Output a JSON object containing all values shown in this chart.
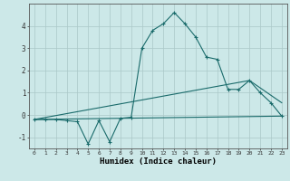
{
  "title": "",
  "xlabel": "Humidex (Indice chaleur)",
  "bg_color": "#cce8e8",
  "grid_color": "#aac8c8",
  "line_color": "#1a6b6b",
  "line1": {
    "x": [
      0,
      1,
      2,
      3,
      4,
      5,
      6,
      7,
      8,
      9,
      10,
      11,
      12,
      13,
      14,
      15,
      16,
      17,
      18,
      19,
      20,
      21,
      22,
      23
    ],
    "y": [
      -0.2,
      -0.2,
      -0.2,
      -0.25,
      -0.3,
      -1.3,
      -0.25,
      -1.2,
      -0.15,
      -0.1,
      3.0,
      3.8,
      4.1,
      4.6,
      4.1,
      3.5,
      2.6,
      2.5,
      1.15,
      1.15,
      1.55,
      1.0,
      0.55,
      -0.05
    ]
  },
  "line2": {
    "x": [
      0,
      23
    ],
    "y": [
      -0.2,
      -0.05
    ]
  },
  "line3": {
    "x": [
      0,
      20,
      23
    ],
    "y": [
      -0.2,
      1.55,
      0.55
    ]
  },
  "xlim": [
    -0.5,
    23.5
  ],
  "ylim": [
    -1.5,
    5.0
  ],
  "yticks": [
    -1,
    0,
    1,
    2,
    3,
    4
  ],
  "xticks": [
    0,
    1,
    2,
    3,
    4,
    5,
    6,
    7,
    8,
    9,
    10,
    11,
    12,
    13,
    14,
    15,
    16,
    17,
    18,
    19,
    20,
    21,
    22,
    23
  ],
  "figsize": [
    3.2,
    2.0
  ],
  "dpi": 100
}
